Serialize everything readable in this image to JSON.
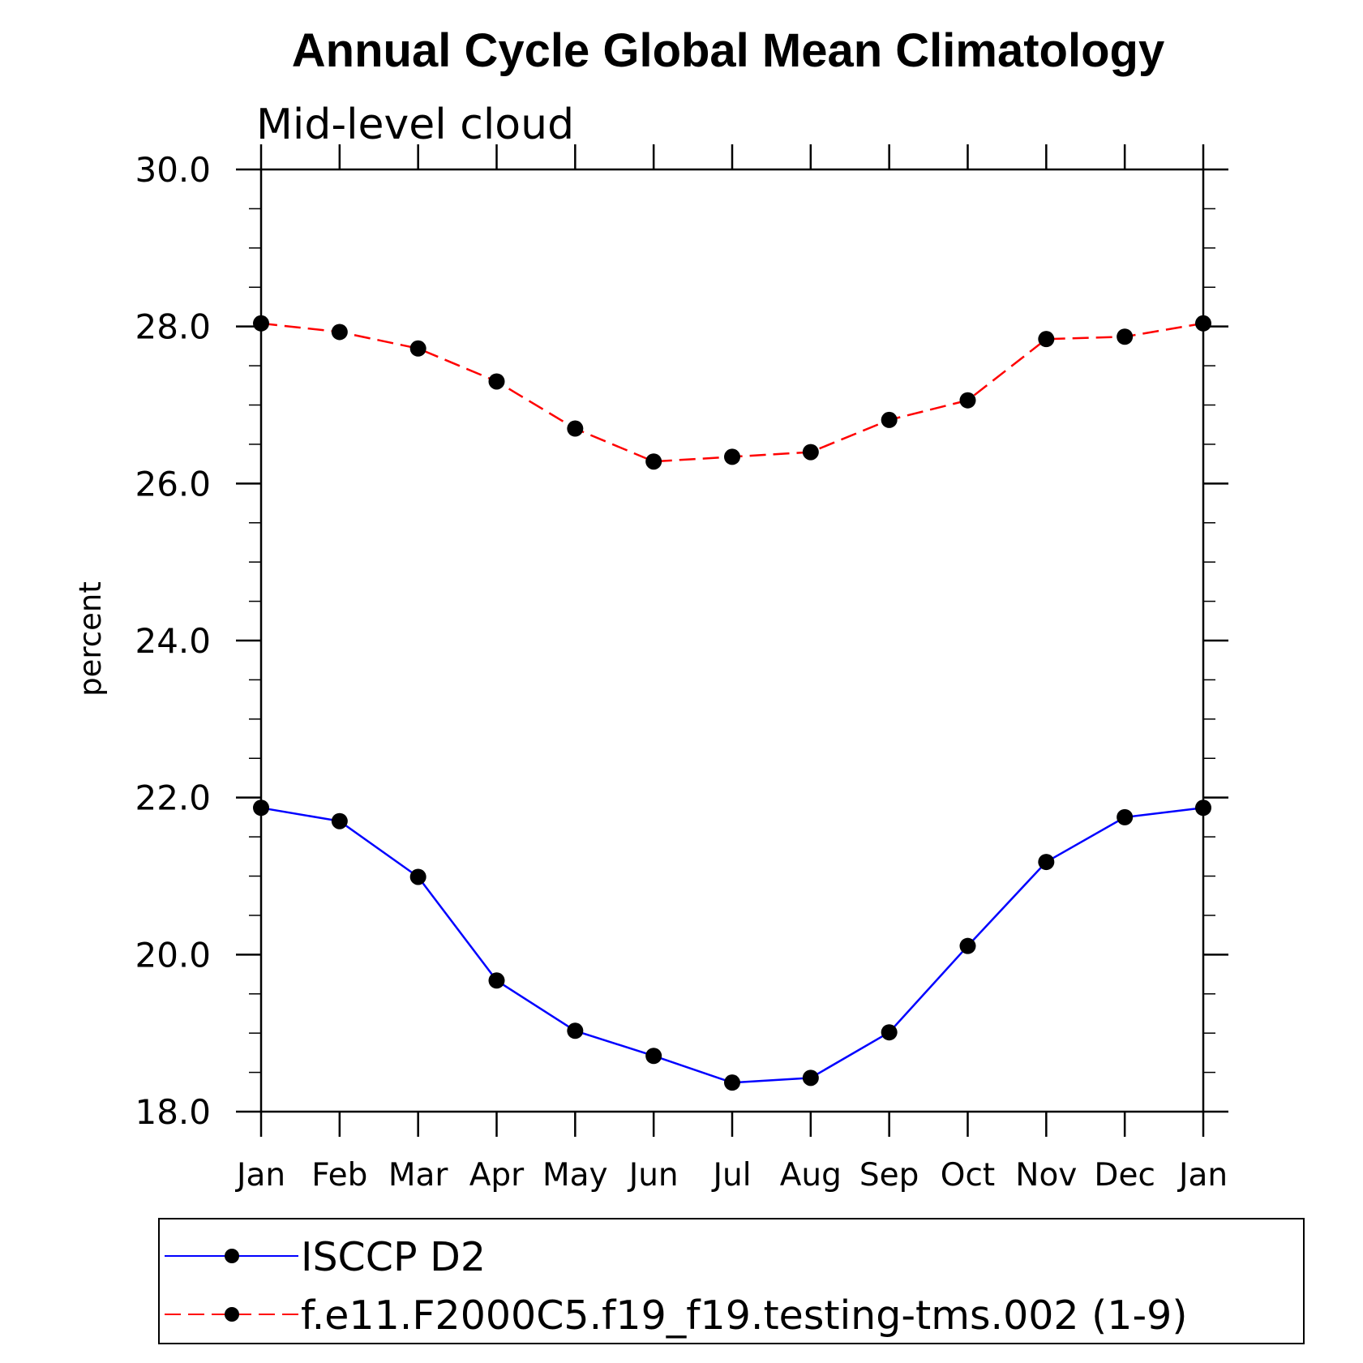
{
  "chart_data": {
    "type": "line",
    "title": "Annual Cycle Global Mean Climatology",
    "subtitle": "Mid-level cloud",
    "ylabel": "percent",
    "xlabel": "",
    "ylim": [
      18.0,
      30.0
    ],
    "yticks": [
      "18.0",
      "20.0",
      "22.0",
      "24.0",
      "26.0",
      "28.0",
      "30.0"
    ],
    "categories": [
      "Jan",
      "Feb",
      "Mar",
      "Apr",
      "May",
      "Jun",
      "Jul",
      "Aug",
      "Sep",
      "Oct",
      "Nov",
      "Dec",
      "Jan"
    ],
    "grid": false,
    "legend_position": "bottom",
    "series": [
      {
        "name": "ISCCP D2",
        "color": "#0000ff",
        "dash": "solid",
        "marker": "filled-circle",
        "values": [
          21.87,
          21.7,
          20.99,
          19.67,
          19.03,
          18.71,
          18.37,
          18.43,
          19.01,
          20.11,
          21.18,
          21.75,
          21.87
        ]
      },
      {
        "name": "f.e11.F2000C5.f19_f19.testing-tms.002 (1-9)",
        "color": "#ff0000",
        "dash": "dashed",
        "marker": "filled-circle",
        "values": [
          28.04,
          27.93,
          27.72,
          27.3,
          26.7,
          26.28,
          26.34,
          26.4,
          26.81,
          27.06,
          27.84,
          27.87,
          28.04
        ]
      }
    ]
  }
}
